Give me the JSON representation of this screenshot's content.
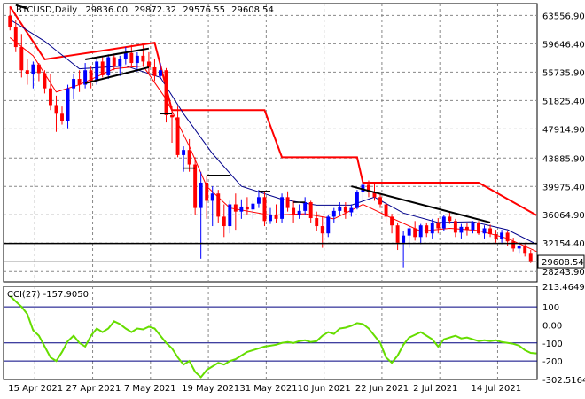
{
  "header": {
    "symbol": "BTCUSD,Daily",
    "open": "29836.00",
    "high": "29872.32",
    "low": "29576.55",
    "close": "29608.54"
  },
  "last_price_label": "29608.54",
  "cci_header": "CCI(27) -157.9050",
  "colors": {
    "bull": "#0000ff",
    "bear": "#ff0000",
    "upper_channel": "#ff0000",
    "ma_fast": "#ff0000",
    "ma_slow": "#00008b",
    "cci_line": "#66dd00",
    "cci_band": "#000080",
    "grid": "#888888",
    "last_price_bg": "#ffffff"
  },
  "chart_data": [
    {
      "type": "candlestick",
      "title": "BTCUSD,Daily",
      "ylim": [
        26800,
        65200
      ],
      "y_ticks": [
        "63556.90",
        "59646.40",
        "55735.90",
        "51825.40",
        "47914.90",
        "43885.90",
        "39975.40",
        "36064.90",
        "32154.40",
        "28243.90"
      ],
      "x_ticks": [
        "15 Apr 2021",
        "27 Apr 2021",
        "7 May 2021",
        "19 May 2021",
        "31 May 2021",
        "10 Jun 2021",
        "22 Jun 2021",
        "2 Jul 2021",
        "14 Jul 2021"
      ],
      "candles": [
        [
          63500,
          64800,
          61500,
          62000
        ],
        [
          62000,
          63000,
          58500,
          59200
        ],
        [
          59200,
          61000,
          55000,
          56000
        ],
        [
          56000,
          57500,
          54000,
          55500
        ],
        [
          55500,
          57200,
          53500,
          56800
        ],
        [
          56800,
          57000,
          54500,
          55600
        ],
        [
          55600,
          56000,
          52800,
          53500
        ],
        [
          53500,
          55500,
          50500,
          51200
        ],
        [
          51200,
          52500,
          47500,
          50000
        ],
        [
          50000,
          51000,
          48500,
          49000
        ],
        [
          49000,
          54000,
          48000,
          53500
        ],
        [
          53500,
          55500,
          52000,
          54800
        ],
        [
          54800,
          56000,
          53000,
          54000
        ],
        [
          54000,
          57000,
          53500,
          56000
        ],
        [
          56000,
          56500,
          53500,
          54500
        ],
        [
          54500,
          57500,
          54000,
          57200
        ],
        [
          57200,
          57800,
          55000,
          55300
        ],
        [
          55300,
          58200,
          54800,
          57800
        ],
        [
          57800,
          58300,
          56000,
          56500
        ],
        [
          56500,
          58000,
          55200,
          57600
        ],
        [
          57600,
          59200,
          56800,
          58400
        ],
        [
          58400,
          59500,
          56500,
          57000
        ],
        [
          57000,
          58500,
          55800,
          58000
        ],
        [
          58000,
          59800,
          56500,
          57200
        ],
        [
          57200,
          58500,
          55500,
          56400
        ],
        [
          56400,
          57500,
          54500,
          55200
        ],
        [
          55200,
          57000,
          54800,
          56000
        ],
        [
          56000,
          56300,
          48800,
          49800
        ],
        [
          49800,
          51000,
          46000,
          49500
        ],
        [
          49500,
          51000,
          44000,
          44300
        ],
        [
          44300,
          45500,
          42000,
          45000
        ],
        [
          45000,
          46500,
          42000,
          43000
        ],
        [
          43000,
          44000,
          36000,
          37000
        ],
        [
          37000,
          42000,
          30000,
          40500
        ],
        [
          40500,
          41500,
          35500,
          38000
        ],
        [
          38000,
          40000,
          34500,
          39000
        ],
        [
          39000,
          39500,
          35000,
          35800
        ],
        [
          35800,
          37500,
          33000,
          34500
        ],
        [
          34500,
          38000,
          33500,
          37500
        ],
        [
          37500,
          39000,
          34000,
          36500
        ],
        [
          36500,
          38200,
          35500,
          37200
        ],
        [
          37200,
          38500,
          36000,
          36800
        ],
        [
          36800,
          38000,
          35500,
          37600
        ],
        [
          37600,
          39500,
          37000,
          38500
        ],
        [
          38500,
          39200,
          34500,
          35200
        ],
        [
          35200,
          37000,
          34800,
          36000
        ],
        [
          36000,
          37500,
          35000,
          35500
        ],
        [
          35500,
          39000,
          35000,
          38500
        ],
        [
          38500,
          39300,
          36500,
          37000
        ],
        [
          37000,
          38000,
          35000,
          36000
        ],
        [
          36000,
          37500,
          35500,
          36600
        ],
        [
          36600,
          38500,
          36000,
          37800
        ],
        [
          37800,
          38000,
          35000,
          35600
        ],
        [
          35600,
          36500,
          33800,
          34500
        ],
        [
          34500,
          35800,
          31500,
          33500
        ],
        [
          33500,
          36000,
          33000,
          35800
        ],
        [
          35800,
          37000,
          35000,
          36600
        ],
        [
          36600,
          37800,
          36000,
          37200
        ],
        [
          37200,
          37800,
          35500,
          36400
        ],
        [
          36400,
          37500,
          35800,
          37000
        ],
        [
          37000,
          39500,
          36800,
          39200
        ],
        [
          39200,
          41000,
          38000,
          40200
        ],
        [
          40200,
          40800,
          38500,
          39200
        ],
        [
          39200,
          40500,
          38000,
          38500
        ],
        [
          38500,
          39000,
          37000,
          37500
        ],
        [
          37500,
          37800,
          35000,
          35800
        ],
        [
          35800,
          36200,
          33500,
          34600
        ],
        [
          34600,
          35000,
          31200,
          32200
        ],
        [
          32200,
          33800,
          28800,
          33200
        ],
        [
          33200,
          34500,
          31500,
          34200
        ],
        [
          34200,
          35200,
          32500,
          33000
        ],
        [
          33000,
          34800,
          32000,
          34600
        ],
        [
          34600,
          35000,
          33000,
          33500
        ],
        [
          33500,
          35500,
          32800,
          35000
        ],
        [
          35000,
          35600,
          33500,
          34200
        ],
        [
          34200,
          36000,
          33800,
          35800
        ],
        [
          35800,
          36500,
          34800,
          35200
        ],
        [
          35200,
          35500,
          33000,
          33600
        ],
        [
          33600,
          34800,
          32800,
          34400
        ],
        [
          34400,
          35000,
          33200,
          34000
        ],
        [
          34000,
          35200,
          33500,
          34900
        ],
        [
          34900,
          35200,
          33300,
          33500
        ],
        [
          33500,
          34600,
          32800,
          34200
        ],
        [
          34200,
          34700,
          33000,
          33400
        ],
        [
          33400,
          34000,
          32200,
          32700
        ],
        [
          32700,
          34000,
          32000,
          33600
        ],
        [
          33600,
          33800,
          31800,
          32400
        ],
        [
          32400,
          32900,
          31000,
          31400
        ],
        [
          31400,
          32300,
          30800,
          31800
        ],
        [
          31800,
          32000,
          30300,
          30800
        ],
        [
          30800,
          31200,
          29400,
          29608
        ]
      ],
      "upper_channel": [
        [
          0,
          64800
        ],
        [
          6,
          57500
        ],
        [
          25,
          59800
        ],
        [
          28,
          50500
        ],
        [
          44,
          50500
        ],
        [
          47,
          44000
        ],
        [
          60,
          44000
        ],
        [
          61,
          40500
        ],
        [
          81,
          40500
        ],
        [
          91,
          36000
        ]
      ],
      "ma_fast": [
        [
          0,
          60500
        ],
        [
          4,
          58000
        ],
        [
          8,
          53000
        ],
        [
          12,
          54000
        ],
        [
          18,
          56200
        ],
        [
          23,
          56600
        ],
        [
          27,
          52000
        ],
        [
          31,
          45500
        ],
        [
          34,
          40000
        ],
        [
          38,
          37000
        ],
        [
          45,
          36000
        ],
        [
          51,
          36200
        ],
        [
          56,
          35500
        ],
        [
          61,
          37500
        ],
        [
          66,
          35600
        ],
        [
          71,
          33800
        ],
        [
          76,
          34200
        ],
        [
          81,
          33900
        ],
        [
          86,
          32800
        ],
        [
          91,
          31000
        ]
      ],
      "ma_slow": [
        [
          0,
          63000
        ],
        [
          6,
          60000
        ],
        [
          12,
          56200
        ],
        [
          20,
          56600
        ],
        [
          26,
          55000
        ],
        [
          30,
          50000
        ],
        [
          35,
          44500
        ],
        [
          40,
          40000
        ],
        [
          47,
          38200
        ],
        [
          53,
          37400
        ],
        [
          59,
          37400
        ],
        [
          63,
          38500
        ],
        [
          68,
          36300
        ],
        [
          74,
          35000
        ],
        [
          80,
          35100
        ],
        [
          86,
          34000
        ],
        [
          91,
          32000
        ]
      ],
      "trend_lines": [
        [
          [
            1,
            65000
          ],
          [
            3,
            64500
          ]
        ],
        [
          [
            13,
            57500
          ],
          [
            24,
            59000
          ]
        ],
        [
          [
            13,
            54200
          ],
          [
            24,
            56400
          ]
        ],
        [
          [
            59,
            40000
          ],
          [
            83,
            35000
          ]
        ]
      ],
      "short_segments": [
        [
          [
            26,
            50000
          ],
          [
            28,
            50000
          ]
        ],
        [
          [
            30,
            42500
          ],
          [
            32,
            42500
          ]
        ],
        [
          [
            34,
            41500
          ],
          [
            38,
            41500
          ]
        ],
        [
          [
            43,
            39300
          ],
          [
            45,
            39300
          ]
        ],
        [
          [
            49,
            37800
          ],
          [
            51,
            37800
          ]
        ]
      ],
      "support_level": 32100,
      "last_price_line": 29608.54
    },
    {
      "type": "line",
      "title": "CCI(27) -157.9050",
      "ylim": [
        -302.5164,
        213.4649
      ],
      "y_ticks": [
        "213.4649",
        "100",
        "0.00",
        "-100",
        "-200",
        "-302.5164"
      ],
      "levels": [
        100,
        -100,
        -200
      ],
      "values": [
        160,
        130,
        100,
        60,
        -30,
        -60,
        -120,
        -180,
        -200,
        -150,
        -90,
        -60,
        -100,
        -120,
        -60,
        -20,
        -40,
        -20,
        20,
        5,
        -20,
        -40,
        -20,
        -25,
        -10,
        -20,
        -60,
        -100,
        -130,
        -180,
        -220,
        -200,
        -260,
        -290,
        -250,
        -230,
        -210,
        -220,
        -200,
        -190,
        -170,
        -150,
        -140,
        -130,
        -120,
        -115,
        -110,
        -100,
        -95,
        -100,
        -90,
        -85,
        -95,
        -90,
        -60,
        -40,
        -50,
        -20,
        -15,
        -5,
        10,
        5,
        -20,
        -60,
        -100,
        -180,
        -210,
        -170,
        -110,
        -70,
        -55,
        -40,
        -60,
        -80,
        -120,
        -80,
        -70,
        -60,
        -75,
        -70,
        -80,
        -90,
        -85,
        -90,
        -85,
        -95,
        -100,
        -105,
        -115,
        -140,
        -155,
        -157.905
      ]
    }
  ]
}
